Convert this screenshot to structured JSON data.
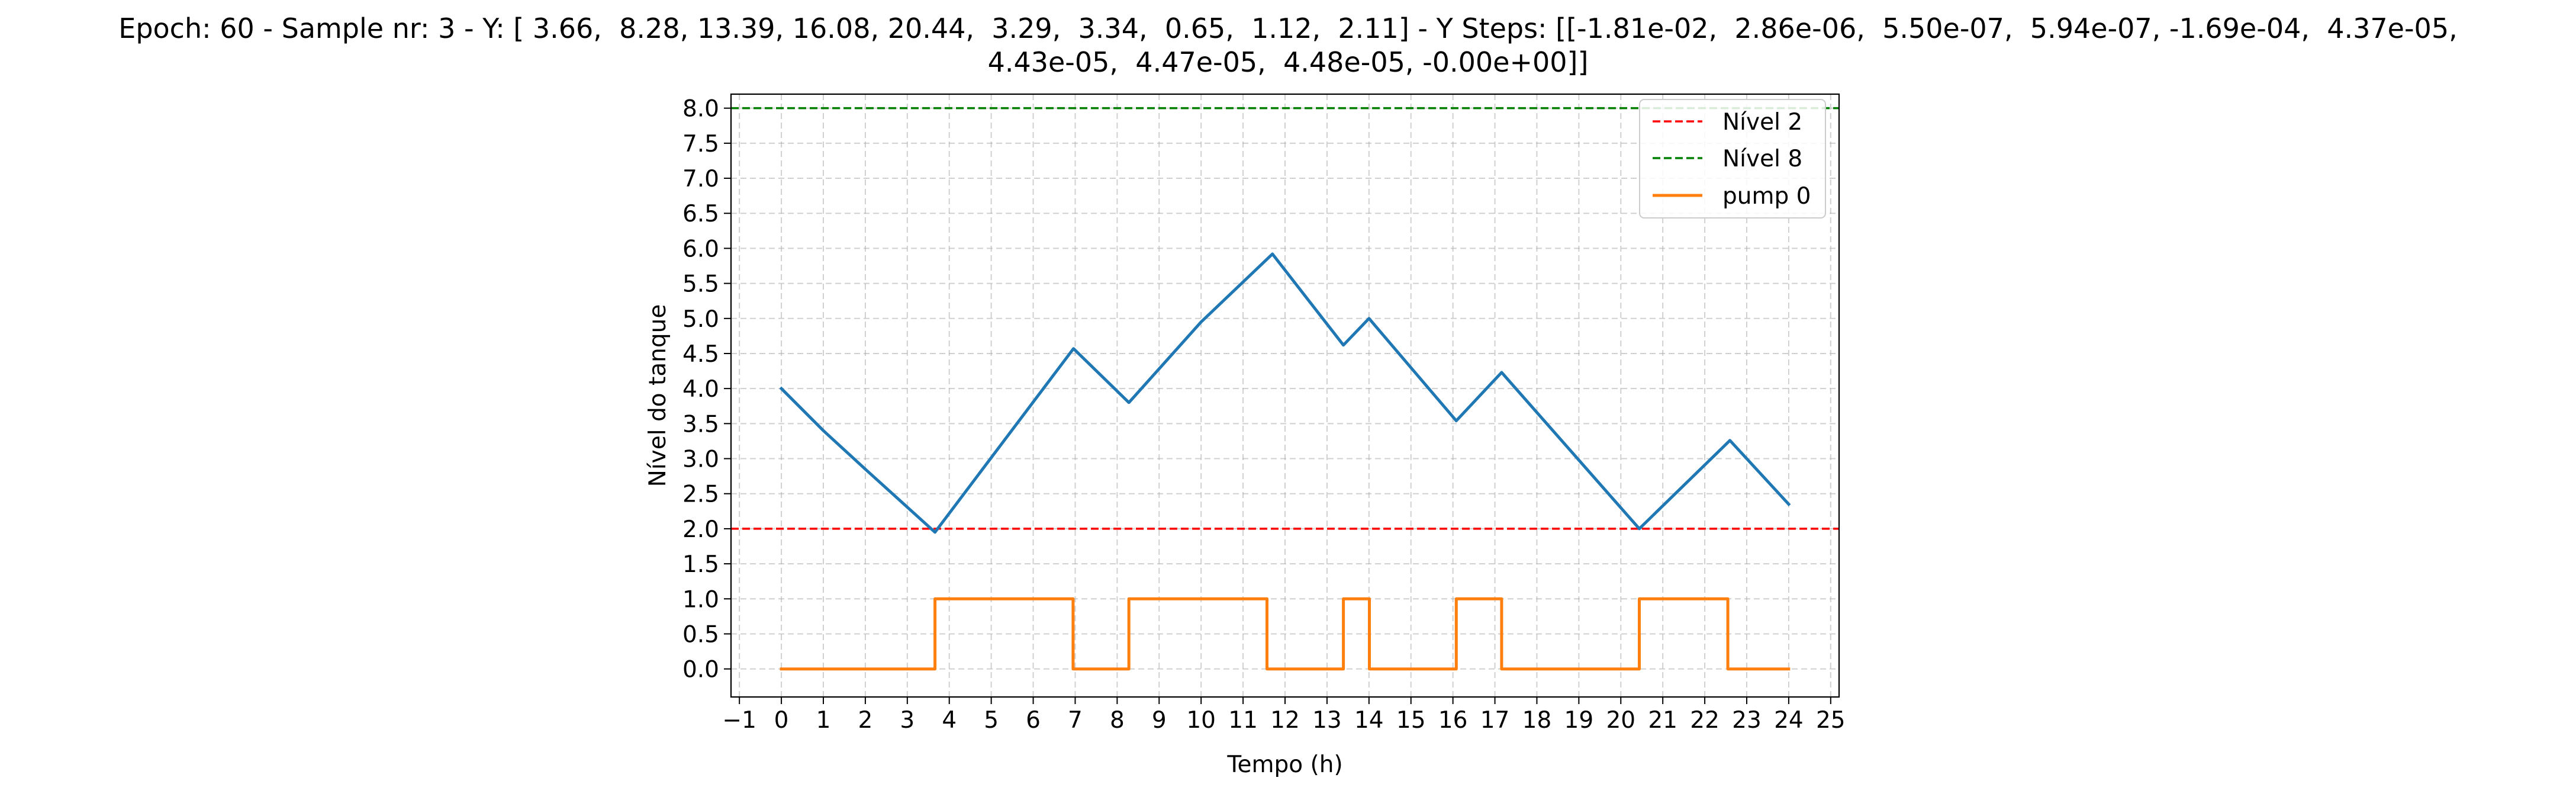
{
  "chart_data": {
    "type": "line",
    "title_line1": "Epoch: 60 - Sample nr: 3 - Y: [ 3.66,  8.28, 13.39, 16.08, 20.44,  3.29,  3.34,  0.65,  1.12,  2.11] - Y Steps: [[-1.81e-02,  2.86e-06,  5.50e-07,  5.94e-07, -1.69e-04,  4.37e-05,",
    "title_line2": "4.43e-05,  4.47e-05,  4.48e-05, -0.00e+00]]",
    "xlabel": "Tempo (h)",
    "ylabel": "Nível do tanque",
    "xlim": [
      -1.2,
      25.2
    ],
    "ylim": [
      -0.4,
      8.2
    ],
    "xticks": [
      -1,
      0,
      1,
      2,
      3,
      4,
      5,
      6,
      7,
      8,
      9,
      10,
      11,
      12,
      13,
      14,
      15,
      16,
      17,
      18,
      19,
      20,
      21,
      22,
      23,
      24,
      25
    ],
    "xtick_labels": [
      "−1",
      "0",
      "1",
      "2",
      "3",
      "4",
      "5",
      "6",
      "7",
      "8",
      "9",
      "10",
      "11",
      "12",
      "13",
      "14",
      "15",
      "16",
      "17",
      "18",
      "19",
      "20",
      "21",
      "22",
      "23",
      "24",
      "25"
    ],
    "yticks": [
      0,
      0.5,
      1,
      1.5,
      2,
      2.5,
      3,
      3.5,
      4,
      4.5,
      5,
      5.5,
      6,
      6.5,
      7,
      7.5,
      8
    ],
    "ytick_labels": [
      "0.0",
      "0.5",
      "1.0",
      "1.5",
      "2.0",
      "2.5",
      "3.0",
      "3.5",
      "4.0",
      "4.5",
      "5.0",
      "5.5",
      "6.0",
      "6.5",
      "7.0",
      "7.5",
      "8.0"
    ],
    "grid": true,
    "legend_position": "top-right",
    "series": [
      {
        "key": "tank-level",
        "color": "#1f77b4",
        "style": "solid",
        "in_legend": false,
        "points": [
          [
            0,
            4.0
          ],
          [
            1.0,
            3.4
          ],
          [
            2.0,
            2.85
          ],
          [
            3.66,
            1.95
          ],
          [
            6.96,
            4.57
          ],
          [
            8.28,
            3.8
          ],
          [
            10.0,
            4.95
          ],
          [
            11.7,
            5.92
          ],
          [
            13.39,
            4.62
          ],
          [
            14.0,
            5.0
          ],
          [
            16.08,
            3.54
          ],
          [
            17.16,
            4.23
          ],
          [
            20.44,
            2.0
          ],
          [
            22.6,
            3.26
          ],
          [
            24.0,
            2.35
          ]
        ]
      },
      {
        "key": "pump-0",
        "name": "pump 0",
        "color": "#ff7f0e",
        "style": "solid",
        "in_legend": true,
        "points": [
          [
            0,
            0
          ],
          [
            3.66,
            0
          ],
          [
            3.66,
            1
          ],
          [
            6.95,
            1
          ],
          [
            6.95,
            0
          ],
          [
            8.28,
            0
          ],
          [
            8.28,
            1
          ],
          [
            11.57,
            1
          ],
          [
            11.57,
            0
          ],
          [
            13.39,
            0
          ],
          [
            13.39,
            1
          ],
          [
            14.01,
            1
          ],
          [
            14.01,
            0
          ],
          [
            16.08,
            0
          ],
          [
            16.08,
            1
          ],
          [
            17.16,
            1
          ],
          [
            17.16,
            0
          ],
          [
            20.44,
            0
          ],
          [
            20.44,
            1
          ],
          [
            22.55,
            1
          ],
          [
            22.55,
            0
          ],
          [
            24.0,
            0
          ]
        ]
      }
    ],
    "reference_lines": [
      {
        "key": "level-2",
        "name": "Nível 2",
        "y": 2,
        "color": "#ff0000",
        "style": "dashed"
      },
      {
        "key": "level-8",
        "name": "Nível 8",
        "y": 8,
        "color": "#008000",
        "style": "dashed"
      }
    ]
  }
}
